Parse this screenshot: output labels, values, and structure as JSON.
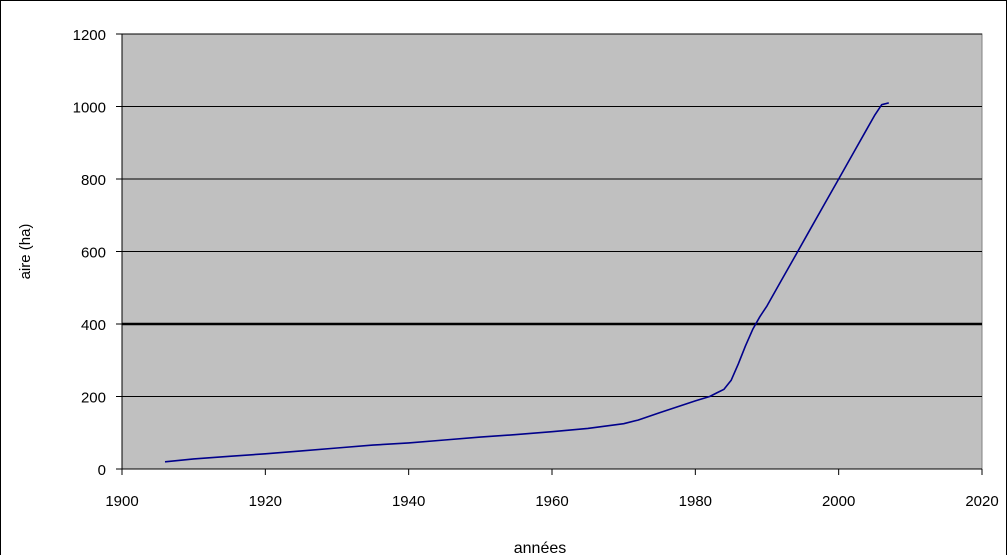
{
  "chart_data": {
    "type": "line",
    "title": "",
    "xlabel": "années",
    "ylabel": "aire (ha)",
    "xlim": [
      1900,
      2020
    ],
    "ylim": [
      0,
      1200
    ],
    "x_ticks": [
      1900,
      1920,
      1940,
      1960,
      1980,
      2000,
      2020
    ],
    "y_ticks": [
      0,
      200,
      400,
      600,
      800,
      1000,
      1200
    ],
    "grid": true,
    "legend": "none",
    "colors": {
      "plot_background": "#c0c0c0",
      "gridline": "#000000",
      "line": "#00008b",
      "frame": "#000000"
    },
    "series": [
      {
        "x": [
          1906,
          1910,
          1915,
          1920,
          1925,
          1930,
          1935,
          1940,
          1945,
          1950,
          1955,
          1960,
          1965,
          1970,
          1972,
          1975,
          1978,
          1980,
          1982,
          1983,
          1984,
          1985,
          1986,
          1987,
          1988,
          1989,
          1990,
          1992,
          1994,
          1996,
          1998,
          2000,
          2002,
          2004,
          2005,
          2006,
          2007
        ],
        "y": [
          20,
          28,
          35,
          42,
          50,
          58,
          66,
          72,
          80,
          88,
          95,
          103,
          112,
          125,
          135,
          155,
          175,
          188,
          200,
          210,
          220,
          245,
          290,
          340,
          385,
          420,
          450,
          520,
          590,
          660,
          730,
          800,
          870,
          940,
          975,
          1005,
          1010
        ]
      }
    ]
  }
}
